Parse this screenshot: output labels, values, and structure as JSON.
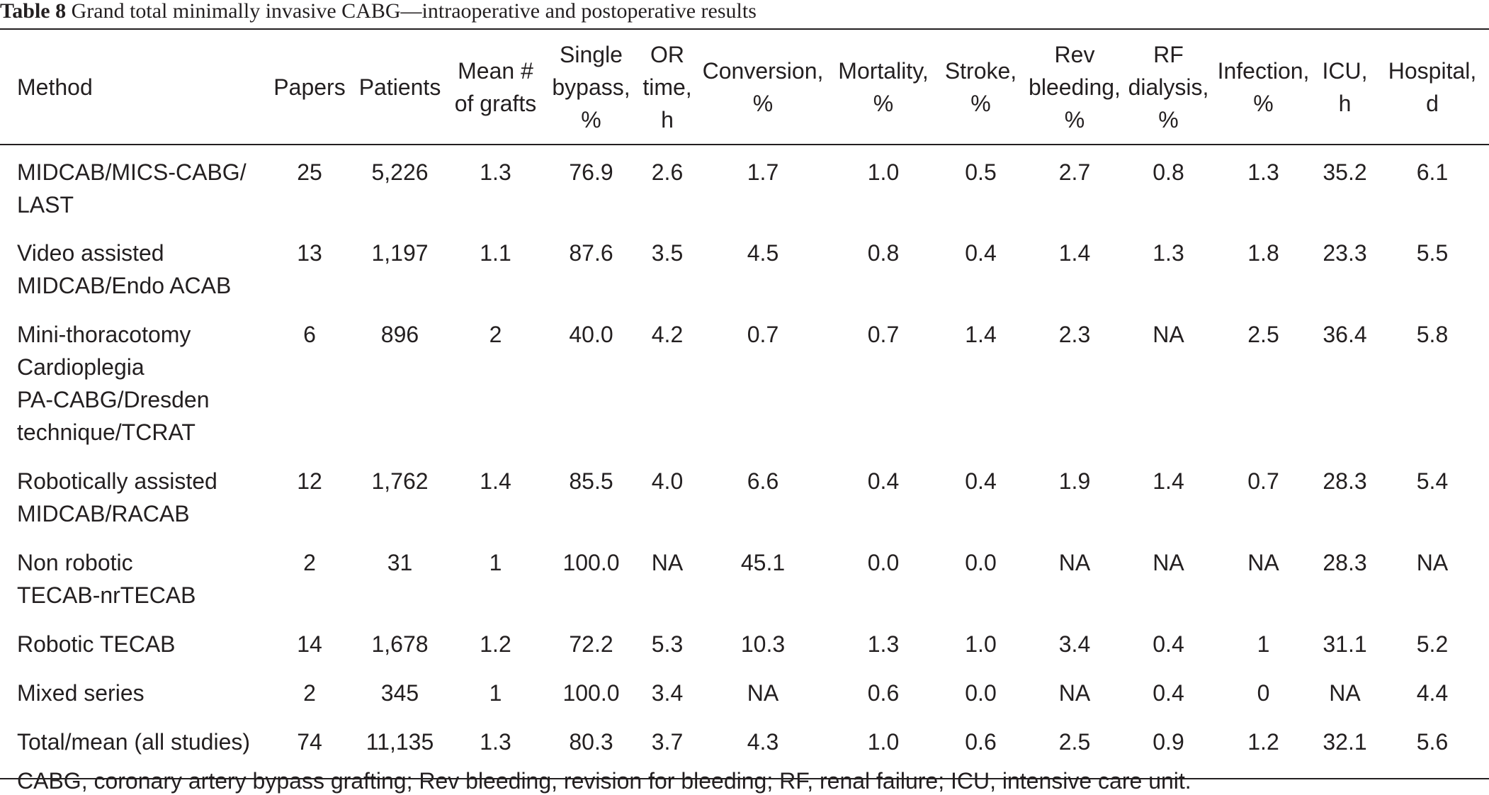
{
  "title": {
    "label": "Table 8",
    "text": "Grand total minimally invasive CABG—intraoperative and postoperative results"
  },
  "table": {
    "headers": [
      [
        "Method"
      ],
      [
        "Papers"
      ],
      [
        "Patients"
      ],
      [
        "Mean #",
        "of grafts"
      ],
      [
        "Single",
        "bypass,",
        "%"
      ],
      [
        "OR",
        "time,",
        "h"
      ],
      [
        "Conversion,",
        "%"
      ],
      [
        "Mortality,",
        "%"
      ],
      [
        "Stroke,",
        "%"
      ],
      [
        "Rev",
        "bleeding,",
        "%"
      ],
      [
        "RF",
        "dialysis,",
        "%"
      ],
      [
        "Infection,",
        "%"
      ],
      [
        "ICU,",
        "h"
      ],
      [
        "Hospital,",
        "d"
      ]
    ],
    "rows": [
      {
        "method": [
          "MIDCAB/MICS-CABG/",
          "LAST"
        ],
        "values": [
          "25",
          "5,226",
          "1.3",
          "76.9",
          "2.6",
          "1.7",
          "1.0",
          "0.5",
          "2.7",
          "0.8",
          "1.3",
          "35.2",
          "6.1"
        ]
      },
      {
        "method": [
          "Video assisted",
          "MIDCAB/Endo ACAB"
        ],
        "values": [
          "13",
          "1,197",
          "1.1",
          "87.6",
          "3.5",
          "4.5",
          "0.8",
          "0.4",
          "1.4",
          "1.3",
          "1.8",
          "23.3",
          "5.5"
        ]
      },
      {
        "method": [
          "Mini-thoracotomy",
          "Cardioplegia",
          "PA-CABG/Dresden",
          "technique/TCRAT"
        ],
        "values": [
          "6",
          "896",
          "2",
          "40.0",
          "4.2",
          "0.7",
          "0.7",
          "1.4",
          "2.3",
          "NA",
          "2.5",
          "36.4",
          "5.8"
        ]
      },
      {
        "method": [
          "Robotically assisted",
          "MIDCAB/RACAB"
        ],
        "values": [
          "12",
          "1,762",
          "1.4",
          "85.5",
          "4.0",
          "6.6",
          "0.4",
          "0.4",
          "1.9",
          "1.4",
          "0.7",
          "28.3",
          "5.4"
        ]
      },
      {
        "method": [
          "Non robotic",
          "TECAB-nrTECAB"
        ],
        "values": [
          "2",
          "31",
          "1",
          "100.0",
          "NA",
          "45.1",
          "0.0",
          "0.0",
          "NA",
          "NA",
          "NA",
          "28.3",
          "NA"
        ]
      },
      {
        "method": [
          "Robotic TECAB"
        ],
        "values": [
          "14",
          "1,678",
          "1.2",
          "72.2",
          "5.3",
          "10.3",
          "1.3",
          "1.0",
          "3.4",
          "0.4",
          "1",
          "31.1",
          "5.2"
        ]
      },
      {
        "method": [
          "Mixed series"
        ],
        "values": [
          "2",
          "345",
          "1",
          "100.0",
          "3.4",
          "NA",
          "0.6",
          "0.0",
          "NA",
          "0.4",
          "0",
          "NA",
          "4.4"
        ]
      },
      {
        "method": [
          "Total/mean (all studies)"
        ],
        "values": [
          "74",
          "11,135",
          "1.3",
          "80.3",
          "3.7",
          "4.3",
          "1.0",
          "0.6",
          "2.5",
          "0.9",
          "1.2",
          "32.1",
          "5.6"
        ]
      }
    ]
  },
  "footnote": "CABG, coronary artery bypass grafting; Rev bleeding, revision for bleeding; RF, renal failure; ICU, intensive care unit."
}
